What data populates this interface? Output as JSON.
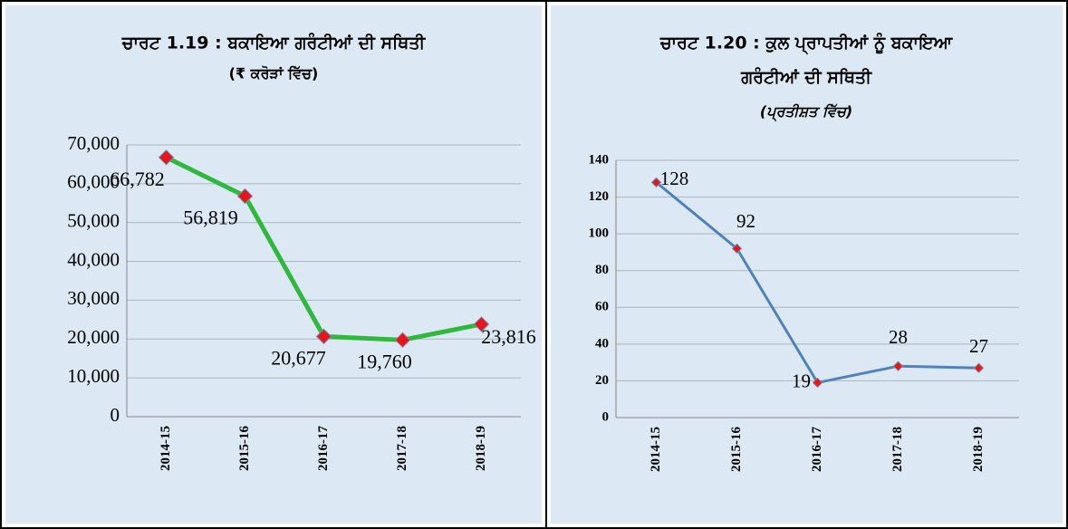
{
  "chart_data": [
    {
      "type": "line",
      "title": [
        "ਚਾਰਟ 1.19 : ਬਕਾਇਆ ਗਰੰਟੀਆਂ ਦੀ ਸਥਿਤੀ"
      ],
      "subtitle": "(₹ ਕਰੋੜਾਂ ਵਿੱਚ)",
      "categories": [
        "2014-15",
        "2015-16",
        "2016-17",
        "2017-18",
        "2018-19"
      ],
      "series": [
        {
          "color": "#2eb83c",
          "values": [
            66782,
            56819,
            20677,
            19760,
            23816
          ],
          "value_labels": [
            "66,782",
            "56,819",
            "20,677",
            "19,760",
            "23,816"
          ]
        }
      ],
      "marker_color": "#e8141b",
      "ylim": [
        0,
        70000
      ],
      "yticks": [
        0,
        {
          "value": 10000,
          "label": "10,000"
        },
        {
          "value": 20000,
          "label": "20,000"
        },
        {
          "value": 30000,
          "label": "30,000"
        },
        {
          "value": 40000,
          "label": "40,000"
        },
        {
          "value": 50000,
          "label": "50,000"
        },
        {
          "value": 60000,
          "label": "60,000"
        },
        {
          "value": 70000,
          "label": "70,000"
        }
      ],
      "grid": true
    },
    {
      "type": "line",
      "title": [
        "ਚਾਰਟ 1.20 : ਕੁਲ ਪ੍ਰਾਪਤੀਆਂ ਨੂੰ ਬਕਾਇਆ",
        "ਗਰੰਟੀਆਂ ਦੀ ਸਥਿਤੀ"
      ],
      "subtitle": "(ਪ੍ਰਤੀਸ਼ਤ ਵਿੱਚ)",
      "categories": [
        "2014-15",
        "2015-16",
        "2016-17",
        "2017-18",
        "2018-19"
      ],
      "series": [
        {
          "color": "#4f81bd",
          "values": [
            128,
            92,
            19,
            28,
            27
          ]
        }
      ],
      "marker_color": "#e8141b",
      "ylim": [
        0,
        140
      ],
      "yticks": [
        0,
        20,
        40,
        60,
        80,
        100,
        120,
        140
      ],
      "grid": true
    }
  ]
}
